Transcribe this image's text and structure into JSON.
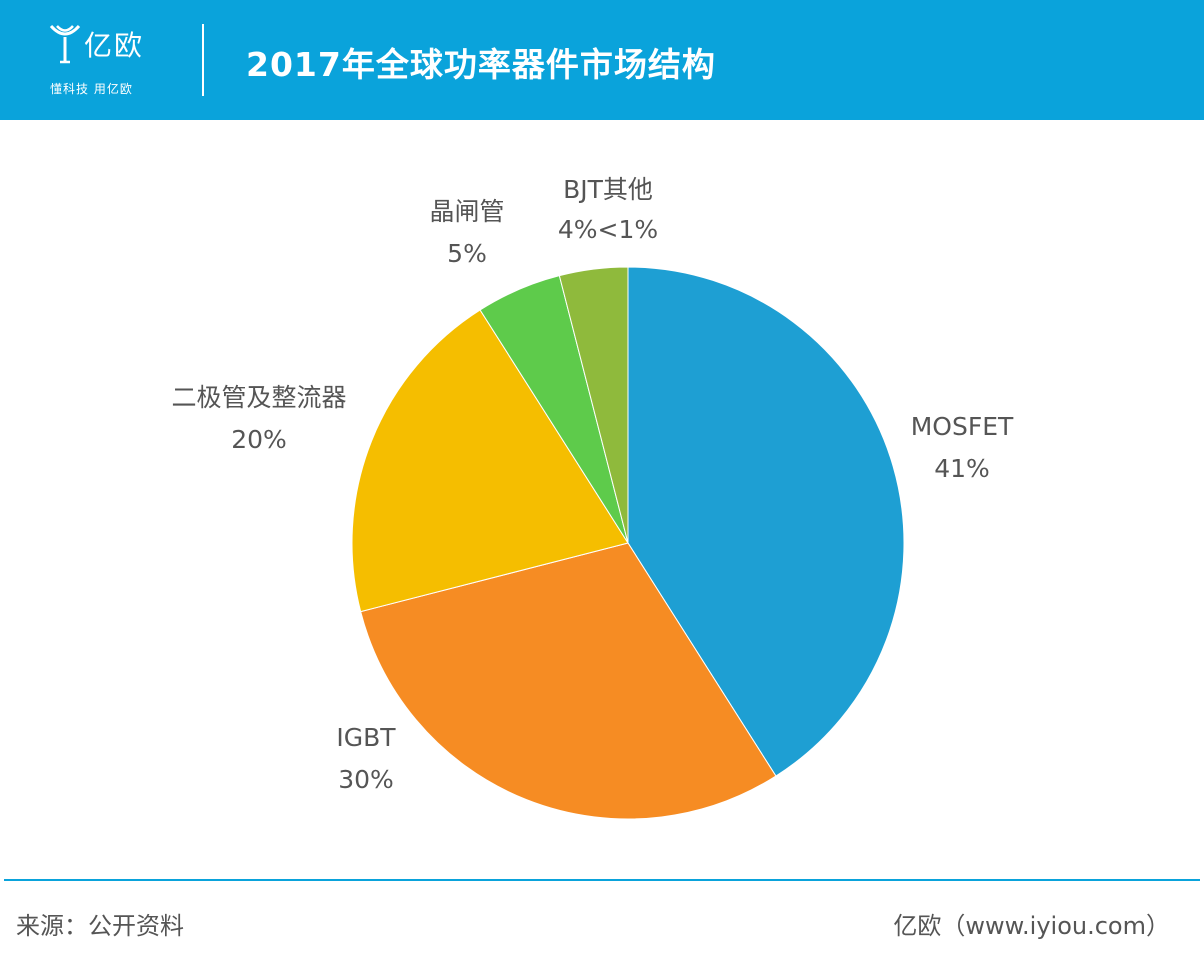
{
  "header": {
    "logo_name": "亿欧",
    "logo_tagline": "懂科技 用亿欧",
    "title": "2017年全球功率器件市场结构"
  },
  "chart_data": {
    "type": "pie",
    "title": "2017年全球功率器件市场结构",
    "start": "12 o'clock",
    "direction": "clockwise",
    "slices": [
      {
        "name": "MOSFET",
        "value": 41,
        "label": "41%",
        "color": "#1e9fd3"
      },
      {
        "name": "IGBT",
        "value": 30,
        "label": "30%",
        "color": "#f68c23"
      },
      {
        "name": "二极管及整流器",
        "value": 20,
        "label": "20%",
        "color": "#f5be00"
      },
      {
        "name": "晶闸管",
        "value": 5,
        "label": "5%",
        "color": "#5ecb4b"
      },
      {
        "name": "BJT其他",
        "value": 4,
        "label": "4%",
        "color": "#8fba3c"
      }
    ],
    "extra_label": "<1%"
  },
  "footer": {
    "source": "来源：公开资料",
    "site": "亿欧（www.iyiou.com）"
  }
}
